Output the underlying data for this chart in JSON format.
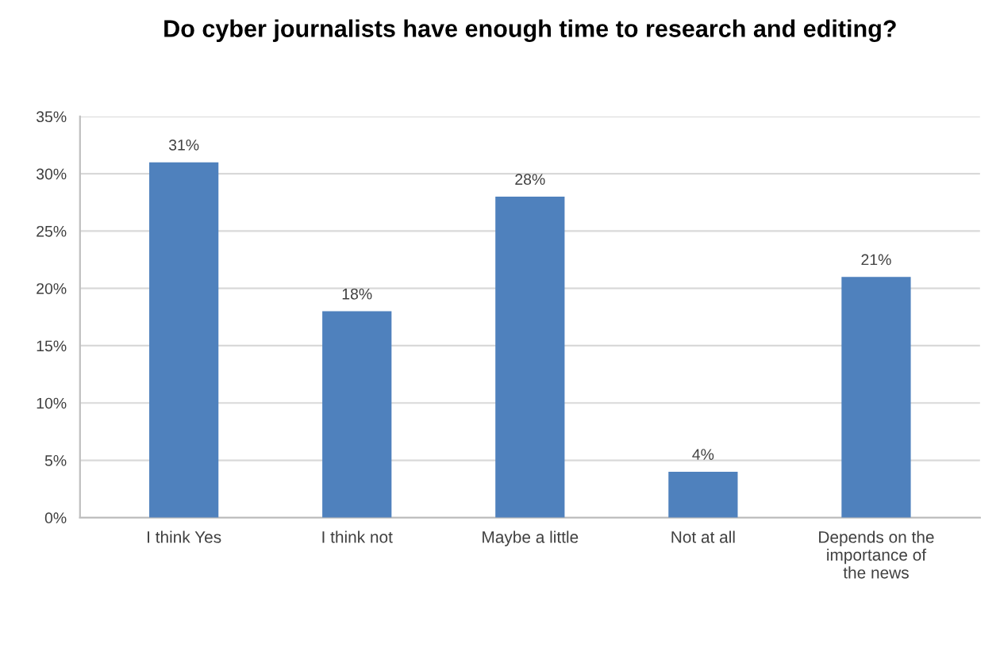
{
  "chart_data": {
    "type": "bar",
    "title": "Do cyber journalists have enough time to research and editing?",
    "categories": [
      "I think Yes",
      "I think not",
      "Maybe a little",
      "Not at all",
      "Depends on the importance of the news"
    ],
    "values": [
      31,
      18,
      28,
      4,
      21
    ],
    "value_labels": [
      "31%",
      "18%",
      "28%",
      "4%",
      "21%"
    ],
    "color": "#4f81bd",
    "ylim": [
      0,
      35
    ],
    "yticks": [
      {
        "value": 0,
        "label": "0%"
      },
      {
        "value": 5,
        "label": "5%"
      },
      {
        "value": 10,
        "label": "10%"
      },
      {
        "value": 15,
        "label": "15%"
      },
      {
        "value": 20,
        "label": "20%"
      },
      {
        "value": 25,
        "label": "25%"
      },
      {
        "value": 30,
        "label": "30%"
      },
      {
        "value": 35,
        "label": "35%"
      }
    ],
    "grid": "y"
  }
}
